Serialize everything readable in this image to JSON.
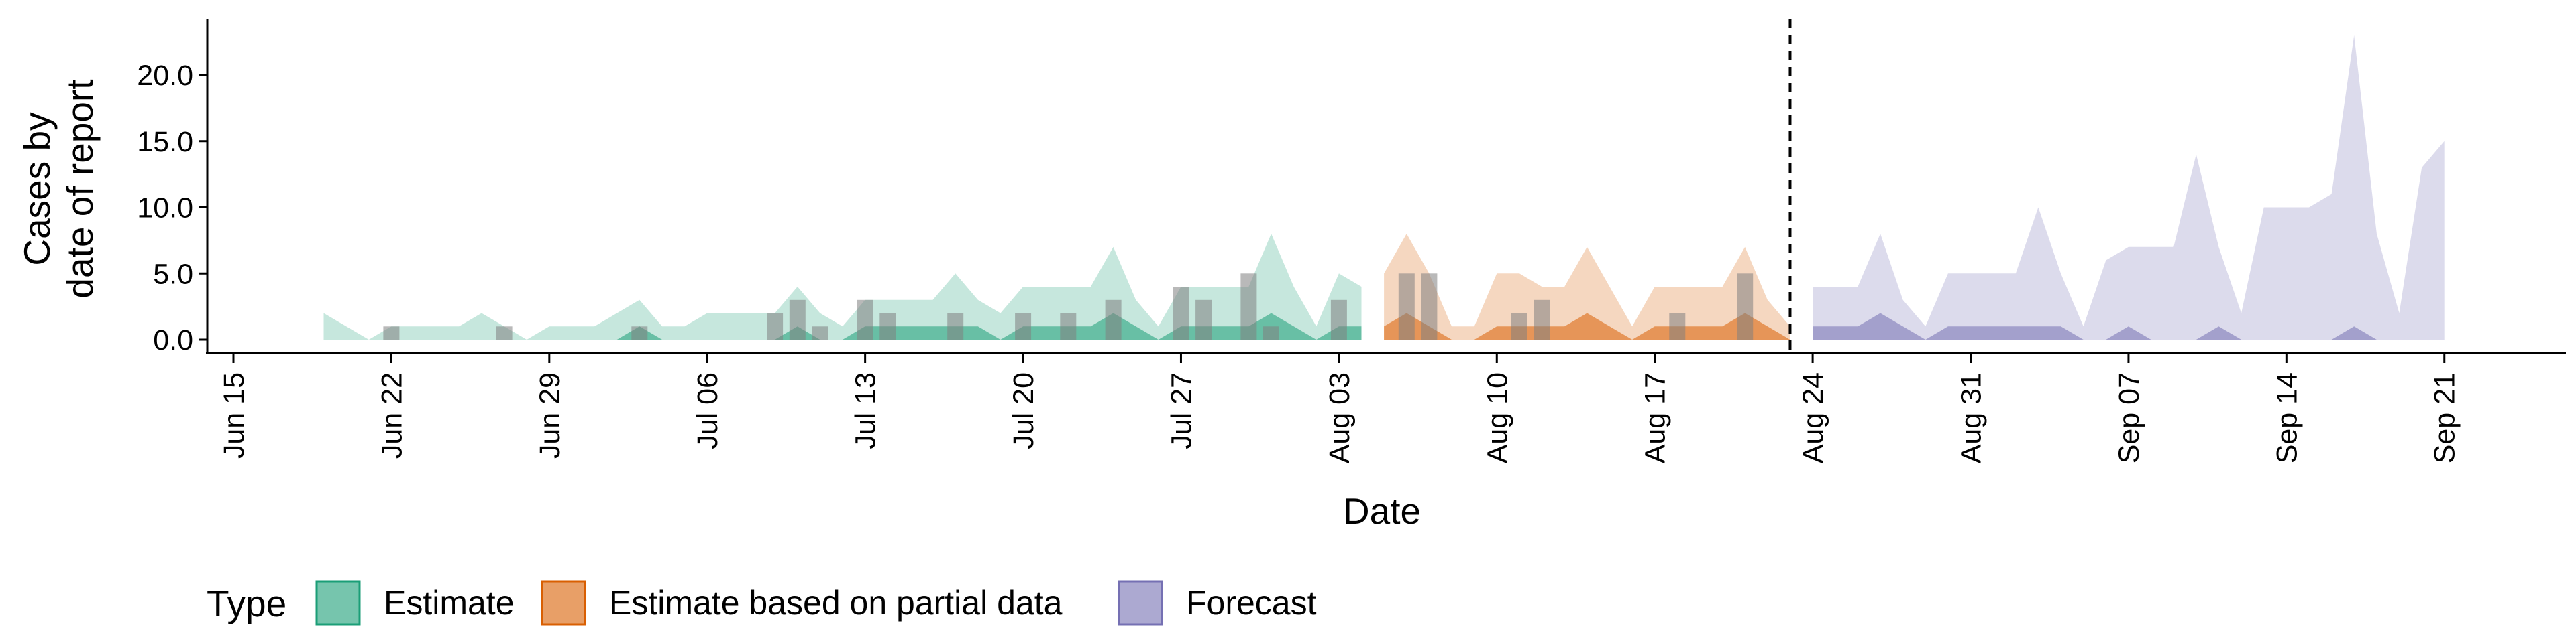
{
  "chart_data": {
    "type": "area",
    "xlabel": "Date",
    "ylabel_lines": [
      "Cases by",
      "date of report"
    ],
    "ylim": [
      -1,
      24
    ],
    "yticks": [
      0,
      5,
      10,
      15,
      20
    ],
    "ytick_labels": [
      "0.0",
      "5.0",
      "10.0",
      "15.0",
      "20.0"
    ],
    "xtick_labels": [
      "Jun 15",
      "Jun 22",
      "Jun 29",
      "Jul 06",
      "Jul 13",
      "Jul 20",
      "Jul 27",
      "Aug 03",
      "Aug 10",
      "Aug 17",
      "Aug 24",
      "Aug 31",
      "Sep 07",
      "Sep 14",
      "Sep 21"
    ],
    "grid": false,
    "legend": {
      "title": "Type",
      "position": "bottom",
      "entries": [
        {
          "label": "Estimate",
          "color": "#1b9e77"
        },
        {
          "label": "Estimate based on partial data",
          "color": "#d95f02"
        },
        {
          "label": "Forecast",
          "color": "#7570b3"
        }
      ]
    },
    "vline": "Aug 23",
    "series": [
      {
        "name": "Estimate",
        "color": "#1b9e77",
        "dates": [
          "2020-06-19",
          "2020-06-20",
          "2020-06-21",
          "2020-06-22",
          "2020-06-23",
          "2020-06-24",
          "2020-06-25",
          "2020-06-26",
          "2020-06-27",
          "2020-06-28",
          "2020-06-29",
          "2020-06-30",
          "2020-07-01",
          "2020-07-02",
          "2020-07-03",
          "2020-07-04",
          "2020-07-05",
          "2020-07-06",
          "2020-07-07",
          "2020-07-08",
          "2020-07-09",
          "2020-07-10",
          "2020-07-11",
          "2020-07-12",
          "2020-07-13",
          "2020-07-14",
          "2020-07-15",
          "2020-07-16",
          "2020-07-17",
          "2020-07-18",
          "2020-07-19",
          "2020-07-20",
          "2020-07-21",
          "2020-07-22",
          "2020-07-23",
          "2020-07-24",
          "2020-07-25",
          "2020-07-26",
          "2020-07-27",
          "2020-07-28",
          "2020-07-29",
          "2020-07-30",
          "2020-07-31",
          "2020-08-01",
          "2020-08-02",
          "2020-08-03",
          "2020-08-04"
        ],
        "upper": [
          2,
          1,
          0,
          1,
          1,
          1,
          1,
          2,
          1,
          0,
          1,
          1,
          1,
          2,
          3,
          1,
          1,
          2,
          2,
          2,
          2,
          4,
          2,
          1,
          3,
          3,
          3,
          3,
          5,
          3,
          2,
          4,
          4,
          4,
          4,
          7,
          3,
          1,
          4,
          4,
          4,
          4,
          8,
          4,
          1,
          5,
          4
        ],
        "lower": [
          0,
          0,
          0,
          0,
          0,
          0,
          0,
          0,
          0,
          0,
          0,
          0,
          0,
          0,
          1,
          0,
          0,
          0,
          0,
          0,
          0,
          1,
          0,
          0,
          1,
          1,
          1,
          1,
          1,
          1,
          0,
          1,
          1,
          1,
          1,
          2,
          1,
          0,
          1,
          1,
          1,
          1,
          2,
          1,
          0,
          1,
          1
        ]
      },
      {
        "name": "Estimate based on partial data",
        "color": "#d95f02",
        "dates": [
          "2020-08-05",
          "2020-08-06",
          "2020-08-07",
          "2020-08-08",
          "2020-08-09",
          "2020-08-10",
          "2020-08-11",
          "2020-08-12",
          "2020-08-13",
          "2020-08-14",
          "2020-08-15",
          "2020-08-16",
          "2020-08-17",
          "2020-08-18",
          "2020-08-19",
          "2020-08-20",
          "2020-08-21",
          "2020-08-22",
          "2020-08-23"
        ],
        "upper": [
          5,
          8,
          5,
          1,
          1,
          5,
          5,
          4,
          4,
          7,
          4,
          1,
          4,
          4,
          4,
          4,
          7,
          3,
          1
        ],
        "lower": [
          1,
          2,
          1,
          0,
          0,
          1,
          1,
          1,
          1,
          2,
          1,
          0,
          1,
          1,
          1,
          1,
          2,
          1,
          0
        ]
      },
      {
        "name": "Forecast",
        "color": "#7570b3",
        "dates": [
          "2020-08-24",
          "2020-08-25",
          "2020-08-26",
          "2020-08-27",
          "2020-08-28",
          "2020-08-29",
          "2020-08-30",
          "2020-08-31",
          "2020-09-01",
          "2020-09-02",
          "2020-09-03",
          "2020-09-04",
          "2020-09-05",
          "2020-09-06",
          "2020-09-07",
          "2020-09-08",
          "2020-09-09",
          "2020-09-10",
          "2020-09-11",
          "2020-09-12",
          "2020-09-13",
          "2020-09-14",
          "2020-09-15",
          "2020-09-16",
          "2020-09-17",
          "2020-09-18",
          "2020-09-19",
          "2020-09-20",
          "2020-09-21",
          "2020-09-22"
        ],
        "upper": [
          4,
          4,
          4,
          8,
          3,
          1,
          5,
          5,
          5,
          5,
          10,
          5,
          1,
          6,
          7,
          7,
          7,
          14,
          7,
          2,
          10,
          10,
          10,
          11,
          23,
          8,
          2,
          13,
          15,
          null
        ],
        "lower": [
          1,
          1,
          1,
          2,
          1,
          0,
          1,
          1,
          1,
          1,
          1,
          1,
          0,
          0,
          1,
          0,
          0,
          0,
          1,
          0,
          0,
          0,
          0,
          0,
          1,
          0,
          0,
          0,
          0,
          null
        ]
      }
    ],
    "reported_bars": {
      "dates": [
        "2020-06-22",
        "2020-06-27",
        "2020-07-03",
        "2020-07-09",
        "2020-07-10",
        "2020-07-11",
        "2020-07-13",
        "2020-07-14",
        "2020-07-17",
        "2020-07-20",
        "2020-07-22",
        "2020-07-24",
        "2020-07-27",
        "2020-07-28",
        "2020-07-30",
        "2020-07-31",
        "2020-08-03",
        "2020-08-06",
        "2020-08-07",
        "2020-08-11",
        "2020-08-12",
        "2020-08-18",
        "2020-08-21"
      ],
      "values": [
        1,
        1,
        1,
        2,
        3,
        1,
        3,
        2,
        2,
        2,
        2,
        3,
        4,
        3,
        5,
        1,
        3,
        5,
        5,
        2,
        3,
        2,
        5
      ],
      "color": "#808080"
    }
  }
}
